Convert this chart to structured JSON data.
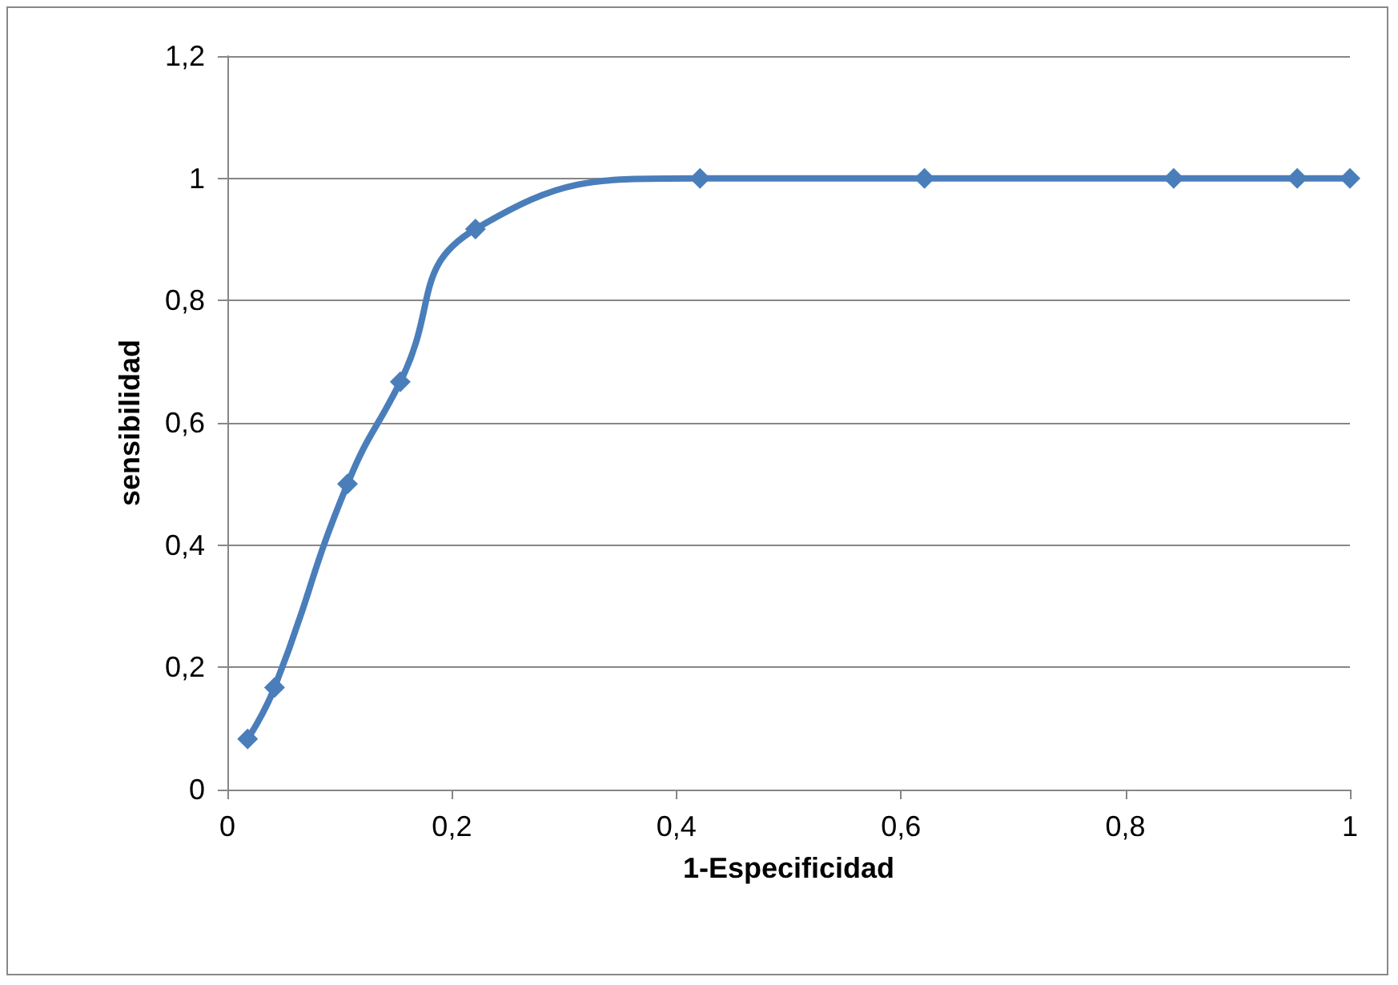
{
  "chart_data": {
    "type": "line",
    "xlabel": "1-Especificidad",
    "ylabel": "sensibilidad",
    "series": [
      {
        "color": "#4a7ebb",
        "x": [
          0.018,
          0.042,
          0.107,
          0.154,
          0.221,
          0.421,
          0.621,
          0.843,
          0.953,
          1
        ],
        "values": [
          0.083,
          0.167,
          0.5,
          0.667,
          0.917,
          1,
          1,
          1,
          1,
          1
        ]
      }
    ],
    "xlim": [
      0,
      1
    ],
    "xticks": [
      {
        "value": 0,
        "label": "0"
      },
      {
        "value": 0.2,
        "label": "0,2"
      },
      {
        "value": 0.4,
        "label": "0,4"
      },
      {
        "value": 0.6,
        "label": "0,6"
      },
      {
        "value": 0.8,
        "label": "0,8"
      },
      {
        "value": 1,
        "label": "1"
      }
    ],
    "ylim": [
      0,
      1.2
    ],
    "yticks": [
      {
        "value": 0,
        "label": "0"
      },
      {
        "value": 0.2,
        "label": "0,2"
      },
      {
        "value": 0.4,
        "label": "0,4"
      },
      {
        "value": 0.6,
        "label": "0,6"
      },
      {
        "value": 0.8,
        "label": "0,8"
      },
      {
        "value": 1,
        "label": "1"
      },
      {
        "value": 1.2,
        "label": "1,2"
      }
    ],
    "grid": "y",
    "marker": "diamond",
    "line_style": "solid"
  }
}
